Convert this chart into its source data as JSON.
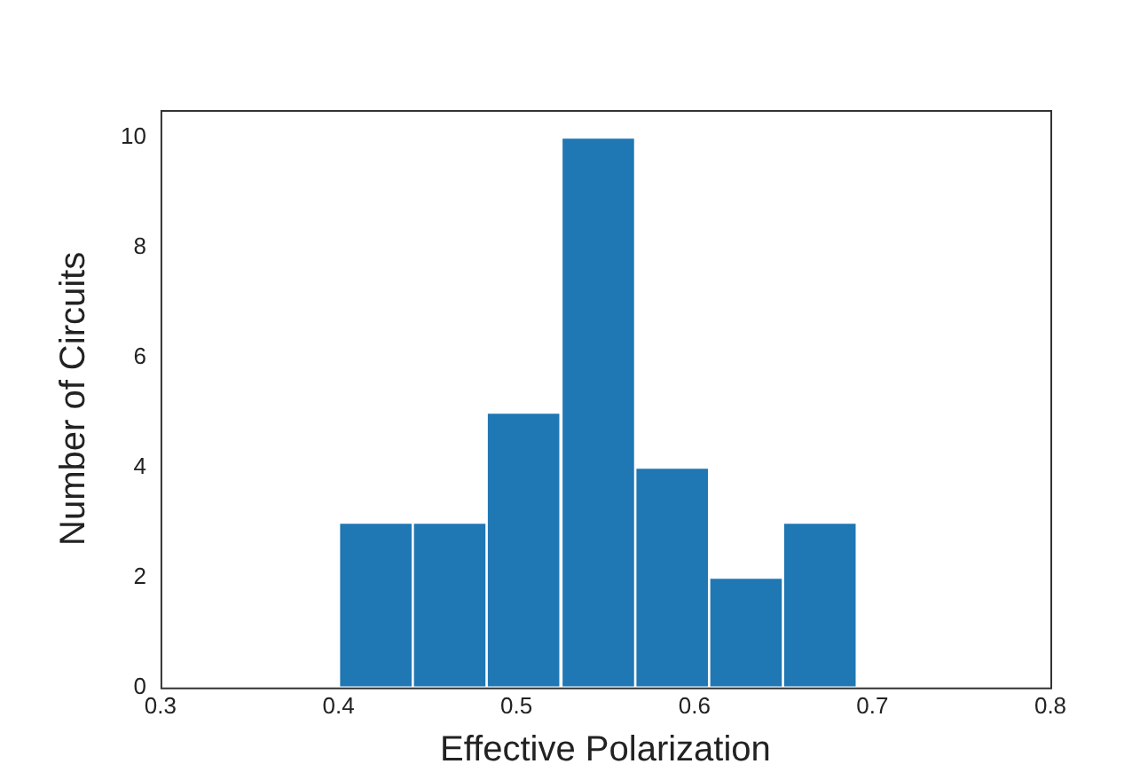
{
  "chart_data": {
    "type": "histogram",
    "xlabel": "Effective Polarization",
    "ylabel": "Number of Circuits",
    "bins": [
      0.4,
      0.442,
      0.483,
      0.525,
      0.567,
      0.608,
      0.65,
      0.691
    ],
    "values": [
      3,
      3,
      5,
      10,
      4,
      2,
      3
    ],
    "color": "#1f77b4",
    "xlim": [
      0.3,
      0.8
    ],
    "xticks": [
      0.3,
      0.4,
      0.5,
      0.6,
      0.7,
      0.8
    ],
    "ylim": [
      0,
      10.5
    ],
    "yticks": [
      0,
      2,
      4,
      6,
      8,
      10
    ],
    "grid": false,
    "legend": false
  }
}
